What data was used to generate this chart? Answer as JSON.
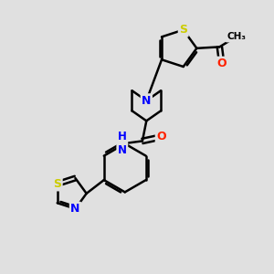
{
  "background_color": "#e0e0e0",
  "atom_colors": {
    "S": "#cccc00",
    "N": "#0000ff",
    "O": "#ff2200",
    "C": "#000000",
    "H": "#009090"
  },
  "bond_color": "#000000",
  "bond_width": 1.8,
  "figsize": [
    3.0,
    3.0
  ],
  "dpi": 100
}
